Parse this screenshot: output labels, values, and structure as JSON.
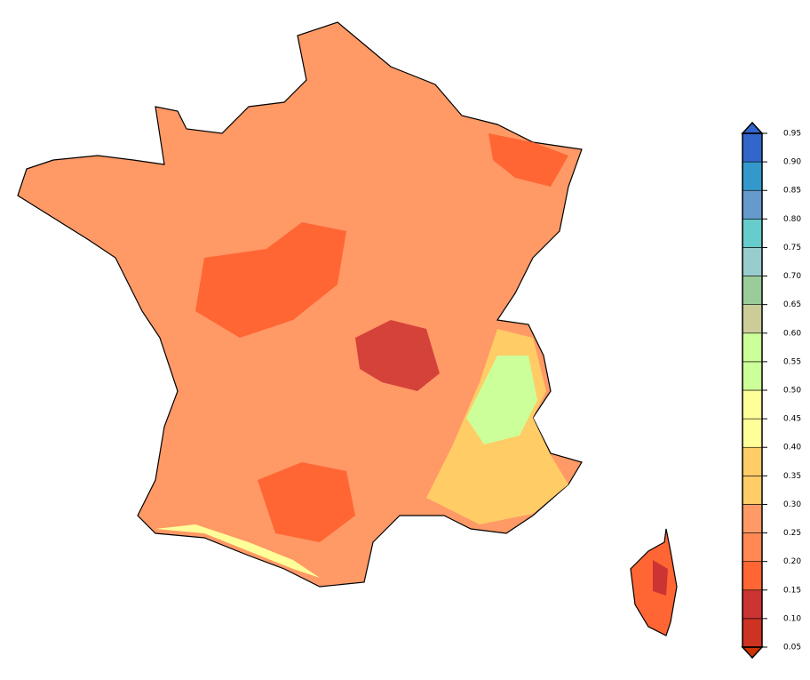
{
  "colorbar": {
    "ticks": [
      0.05,
      {
        "value": 0.1,
        "label": "0.10"
      },
      0.15,
      {
        "value": 0.2,
        "label": "0.20"
      },
      0.25,
      {
        "value": 0.3,
        "label": "0.30"
      },
      0.35,
      {
        "value": 0.4,
        "label": "0.40"
      },
      0.45,
      {
        "value": 0.5,
        "label": "0.50"
      },
      0.55,
      {
        "value": 0.6,
        "label": "0.60"
      },
      0.65,
      {
        "value": 0.7,
        "label": "0.70"
      },
      0.75,
      {
        "value": 0.8,
        "label": "0.80"
      },
      0.85,
      {
        "value": 0.9,
        "label": "0.90"
      },
      0.95
    ],
    "colors": [
      "#cc3322",
      "#cc3333",
      "#ff6633",
      "#ff8855",
      "#ff9966",
      "#ffcc66",
      "#ffcc66",
      "#ffff99",
      "#ffff99",
      "#ccff99",
      "#ccff99",
      "#cccc99",
      "#99cc99",
      "#99cccc",
      "#66cccc",
      "#6699cc",
      "#3399cc",
      "#3366cc"
    ],
    "under_color": "#cc3300",
    "over_color": "#3366cc"
  }
}
